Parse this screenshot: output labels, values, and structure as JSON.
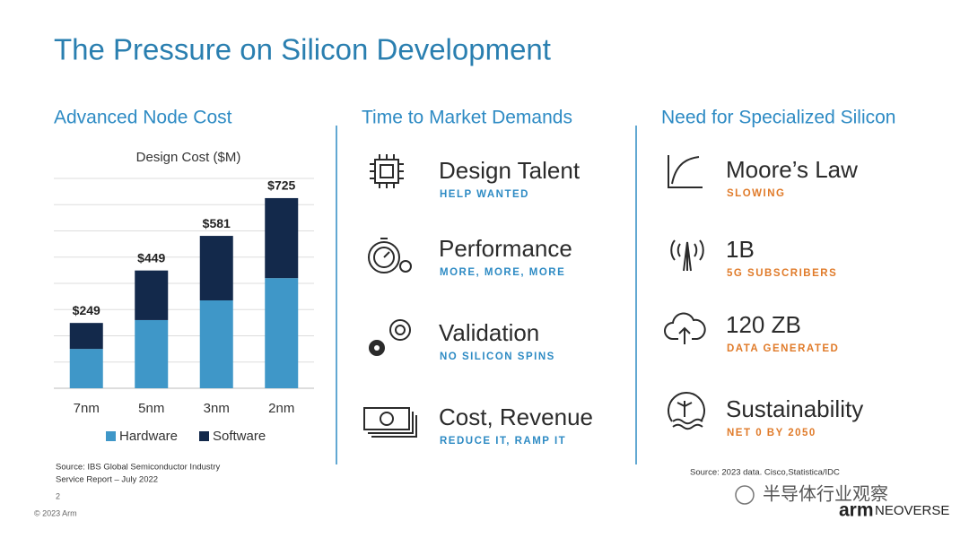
{
  "title": "The Pressure on Silicon Development",
  "columns": [
    {
      "heading": "Advanced Node Cost",
      "source": [
        "Source: IBS Global Semiconductor Industry",
        "Service Report – July 2022"
      ]
    },
    {
      "heading": "Time to Market Demands",
      "items": [
        {
          "title": "Design Talent",
          "subtitle": "HELP WANTED"
        },
        {
          "title": "Performance",
          "subtitle": "MORE, MORE, MORE"
        },
        {
          "title": "Validation",
          "subtitle": "NO SILICON SPINS"
        },
        {
          "title": "Cost, Revenue",
          "subtitle": "REDUCE IT, RAMP IT"
        }
      ]
    },
    {
      "heading": "Need for Specialized Silicon",
      "items": [
        {
          "title": "Moore’s Law",
          "subtitle": "SLOWING"
        },
        {
          "title": "1B",
          "subtitle": "5G SUBSCRIBERS"
        },
        {
          "title": "120 ZB",
          "subtitle": "DATA GENERATED"
        },
        {
          "title": "Sustainability",
          "subtitle": "NET 0 BY 2050"
        }
      ],
      "source": [
        "Source: 2023 data. Cisco,Statistica/IDC"
      ]
    }
  ],
  "footer": {
    "page": "2",
    "copyright": "© 2023 Arm",
    "watermark": "半导体行业观察",
    "logo": [
      "arm",
      "NEOVERSE"
    ]
  },
  "chart_data": {
    "type": "bar",
    "stacked": true,
    "title": "Design Cost ($M)",
    "categories": [
      "7nm",
      "5nm",
      "3nm",
      "2nm"
    ],
    "series": [
      {
        "name": "Hardware",
        "color": "#3f97c8",
        "values": [
          150,
          260,
          335,
          420
        ]
      },
      {
        "name": "Software",
        "color": "#13294b",
        "values": [
          99,
          189,
          246,
          305
        ]
      }
    ],
    "totals": [
      249,
      449,
      581,
      725
    ],
    "total_labels": [
      "$249",
      "$449",
      "$581",
      "$725"
    ],
    "ylim": [
      0,
      800
    ],
    "yticks": [
      0,
      100,
      200,
      300,
      400,
      500,
      600,
      700,
      800
    ],
    "grid": true
  }
}
